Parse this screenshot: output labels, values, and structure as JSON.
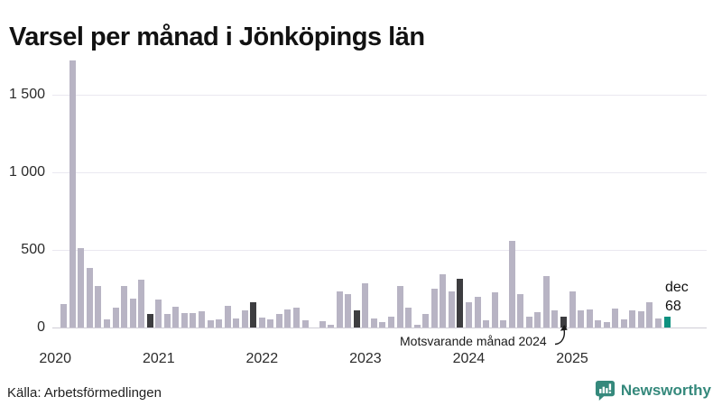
{
  "title": "Varsel per månad i Jönköpings län",
  "source": "Källa: Arbetsförmedlingen",
  "branding": {
    "name": "Newsworthy",
    "color": "#35897c"
  },
  "annotation": {
    "text": "Motsvarande månad 2024"
  },
  "last_point_label": {
    "month": "dec",
    "value": "68"
  },
  "colors": {
    "bar": "#b8b4c4",
    "december": "#3d3d40",
    "latest": "#0e9180",
    "grid": "#eae8f0",
    "axis_line": "#cfccd6"
  },
  "chart_data": {
    "type": "bar",
    "title": "Varsel per månad i Jönköpings län",
    "x_unit": "month",
    "ylim": [
      0,
      1750
    ],
    "yticks": [
      0,
      500,
      1000,
      1500
    ],
    "ytick_labels": [
      "0",
      "500",
      "1 000",
      "1 500"
    ],
    "xtick_labels": [
      "2020",
      "2021",
      "2022",
      "2023",
      "2024",
      "2025"
    ],
    "grid": true,
    "legend": "none",
    "highlight_rule": "December bars dark gray; December 2025 teal with data label",
    "years": [
      {
        "year": "2020",
        "monthly_values": [
          0,
          150,
          1720,
          510,
          385,
          270,
          50,
          130,
          270,
          185,
          310,
          85
        ]
      },
      {
        "year": "2021",
        "monthly_values": [
          180,
          85,
          135,
          95,
          95,
          105,
          45,
          50,
          140,
          60,
          110,
          165
        ]
      },
      {
        "year": "2022",
        "monthly_values": [
          65,
          55,
          85,
          115,
          125,
          45,
          0,
          40,
          20,
          235,
          215,
          110
        ]
      },
      {
        "year": "2023",
        "monthly_values": [
          285,
          60,
          35,
          70,
          265,
          125,
          15,
          85,
          250,
          340,
          235,
          315
        ]
      },
      {
        "year": "2024",
        "monthly_values": [
          160,
          200,
          45,
          225,
          45,
          555,
          215,
          70,
          100,
          330,
          110,
          70
        ]
      },
      {
        "year": "2025",
        "monthly_values": [
          235,
          110,
          115,
          48,
          33,
          120,
          50,
          110,
          105,
          160,
          60,
          68
        ]
      }
    ]
  }
}
